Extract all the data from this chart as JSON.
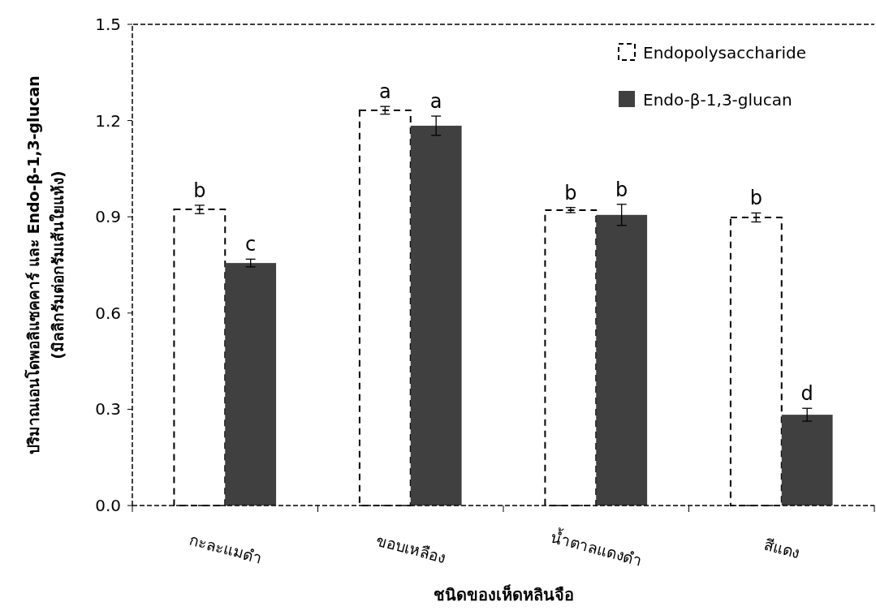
{
  "chart_data": {
    "type": "bar",
    "xlabel": "ชนิดของเห็ดหลินจือ",
    "ylabel": "ปริมาณเอนโดพอลิแซคคาร์ และ Endo-β-1,3-glucan\n(มิลลิกรัมต่อกรัมเส้นใยแห้ง)",
    "categories": [
      "กะละแมดำ",
      "ขอบเหลือง",
      "น้ำตาลแดงดำ",
      "สีแดง"
    ],
    "series": [
      {
        "name": "Endopolysaccharide",
        "color": "#ffffff",
        "line_style": "dashed",
        "values": [
          0.923,
          1.232,
          0.921,
          0.898
        ],
        "errors": [
          0.013,
          0.012,
          0.008,
          0.014
        ],
        "value_labels": [
          "b",
          "a",
          "b",
          "b"
        ]
      },
      {
        "name": "Endo-β-1,3-glucan",
        "color": "#404040",
        "values": [
          0.756,
          1.184,
          0.906,
          0.283
        ],
        "errors": [
          0.012,
          0.03,
          0.033,
          0.02
        ],
        "value_labels": [
          "c",
          "a",
          "b",
          "d"
        ]
      }
    ],
    "ylim": [
      0,
      1.5
    ],
    "yticks": [
      {
        "value": 0,
        "label": "0.0"
      },
      0.3,
      0.6,
      0.9,
      1.2,
      1.5
    ],
    "grid": false,
    "legend": "top right"
  }
}
